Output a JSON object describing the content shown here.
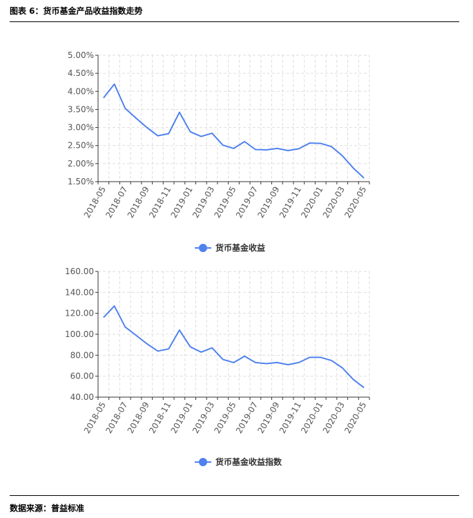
{
  "figure_title": "图表 6：货币基金产品收益指数走势",
  "source_label": "数据来源：普益标准",
  "chart_data": [
    {
      "type": "line",
      "legend_position": "bottom-center",
      "grid": true,
      "series_color": "#4f81ef",
      "x": [
        "2018-05",
        "2018-06",
        "2018-07",
        "2018-08",
        "2018-09",
        "2018-10",
        "2018-11",
        "2018-12",
        "2019-01",
        "2019-02",
        "2019-03",
        "2019-04",
        "2019-05",
        "2019-06",
        "2019-07",
        "2019-08",
        "2019-09",
        "2019-10",
        "2019-11",
        "2019-12",
        "2020-01",
        "2020-02",
        "2020-03",
        "2020-04",
        "2020-05"
      ],
      "x_tick_labels": [
        "2018-05",
        "2018-07",
        "2018-09",
        "2018-11",
        "2019-01",
        "2019-03",
        "2019-05",
        "2019-07",
        "2019-09",
        "2019-11",
        "2020-01",
        "2020-03",
        "2020-05"
      ],
      "y_tick_labels": [
        "1.50%",
        "2.00%",
        "2.50%",
        "3.00%",
        "3.50%",
        "4.00%",
        "4.50%",
        "5.00%"
      ],
      "ylim": [
        1.5,
        5.0
      ],
      "series": [
        {
          "name": "货币基金收益",
          "values": [
            3.82,
            4.2,
            3.53,
            3.26,
            3.0,
            2.77,
            2.83,
            3.42,
            2.88,
            2.75,
            2.84,
            2.51,
            2.42,
            2.61,
            2.39,
            2.38,
            2.42,
            2.36,
            2.41,
            2.57,
            2.56,
            2.47,
            2.22,
            1.88,
            1.6
          ]
        }
      ]
    },
    {
      "type": "line",
      "legend_position": "bottom-center",
      "grid": true,
      "series_color": "#4f81ef",
      "x": [
        "2018-05",
        "2018-06",
        "2018-07",
        "2018-08",
        "2018-09",
        "2018-10",
        "2018-11",
        "2018-12",
        "2019-01",
        "2019-02",
        "2019-03",
        "2019-04",
        "2019-05",
        "2019-06",
        "2019-07",
        "2019-08",
        "2019-09",
        "2019-10",
        "2019-11",
        "2019-12",
        "2020-01",
        "2020-02",
        "2020-03",
        "2020-04",
        "2020-05"
      ],
      "x_tick_labels": [
        "2018-05",
        "2018-07",
        "2018-09",
        "2018-11",
        "2019-01",
        "2019-03",
        "2019-05",
        "2019-07",
        "2019-09",
        "2019-11",
        "2020-01",
        "2020-03",
        "2020-05"
      ],
      "y_tick_labels": [
        "40.00",
        "60.00",
        "80.00",
        "100.00",
        "120.00",
        "140.00",
        "160.00"
      ],
      "ylim": [
        40,
        160
      ],
      "series": [
        {
          "name": "货币基金收益指数",
          "values": [
            116,
            127,
            107,
            99,
            91,
            84,
            86,
            104,
            88,
            83,
            87,
            76,
            73,
            79,
            73,
            72,
            73,
            71,
            73,
            78,
            78,
            75,
            68,
            57,
            49
          ]
        }
      ]
    }
  ]
}
